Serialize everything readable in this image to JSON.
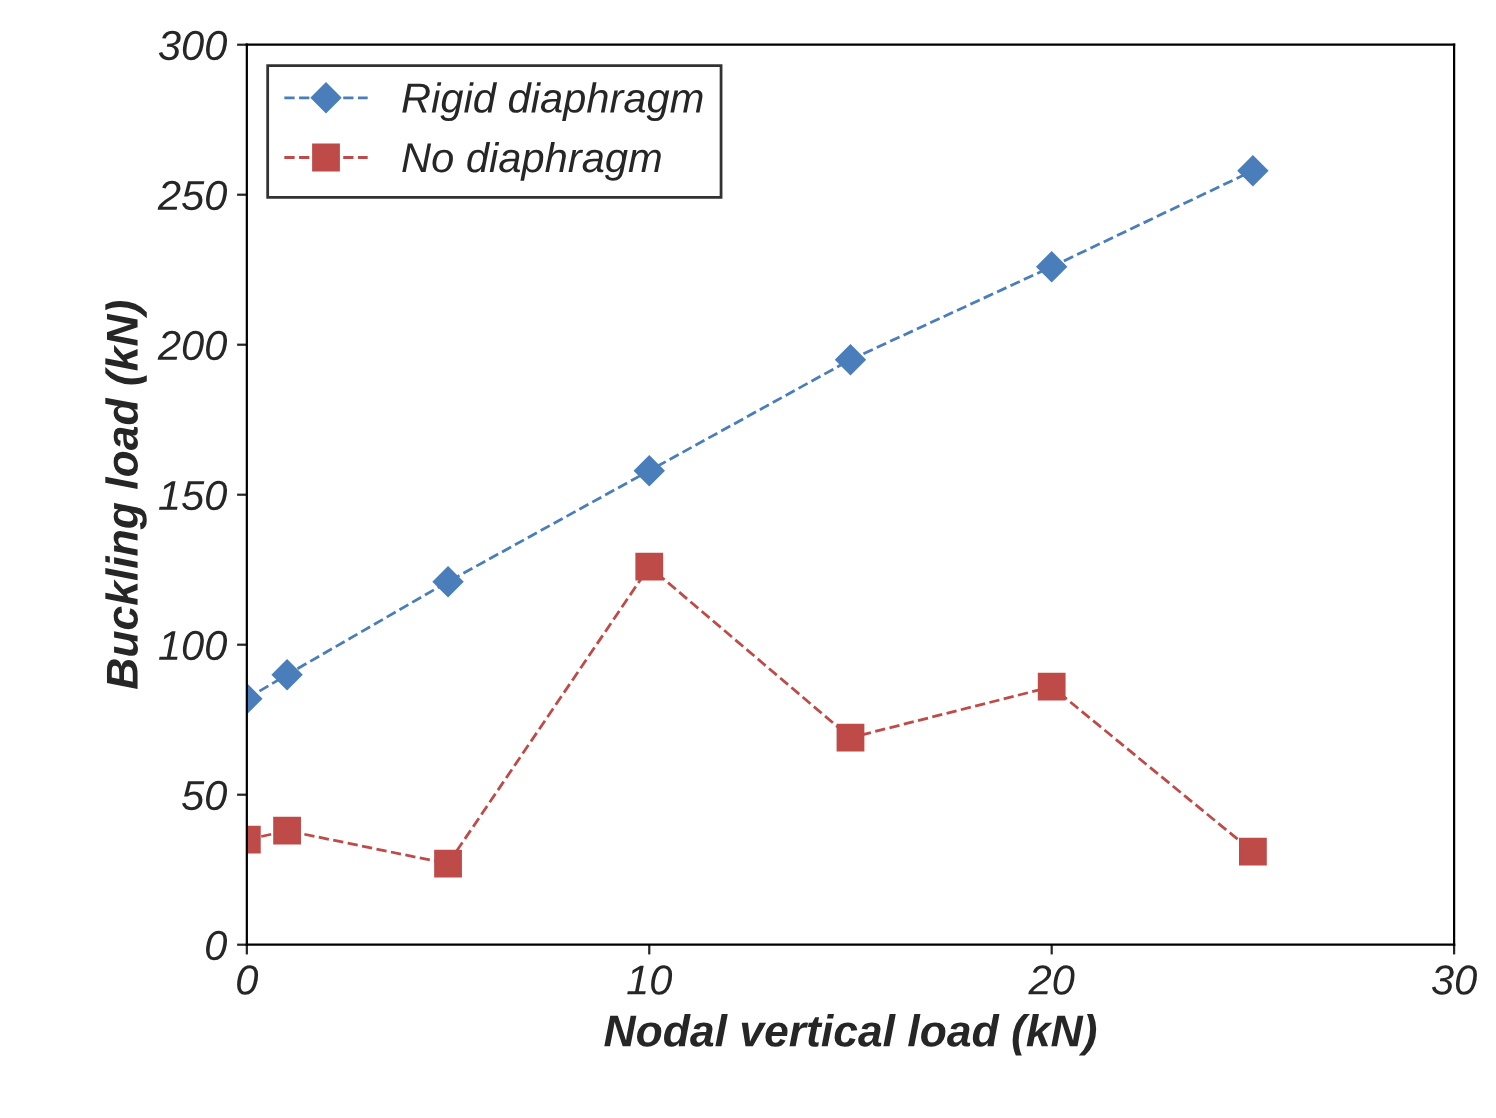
{
  "chart_data": {
    "type": "line",
    "xlabel": "Nodal vertical load (kN)",
    "ylabel": "Buckling load (kN)",
    "x": [
      0,
      1,
      5,
      10,
      15,
      20,
      25
    ],
    "series": [
      {
        "name": "Rigid diaphragm",
        "color": "#4a7ebb",
        "marker": "diamond",
        "line_style": "dashed",
        "values": [
          82,
          90,
          121,
          158,
          195,
          226,
          258
        ]
      },
      {
        "name": "No diaphragm",
        "color": "#be4b48",
        "marker": "square",
        "line_style": "dashed",
        "values": [
          35,
          38,
          27,
          126,
          69,
          86,
          31
        ]
      }
    ],
    "xlim": [
      0,
      30
    ],
    "xticks": [
      0,
      10,
      20,
      30
    ],
    "ylim": [
      0,
      300
    ],
    "yticks": [
      0,
      50,
      100,
      150,
      200,
      250,
      300
    ],
    "grid": false,
    "legend": "top left"
  }
}
